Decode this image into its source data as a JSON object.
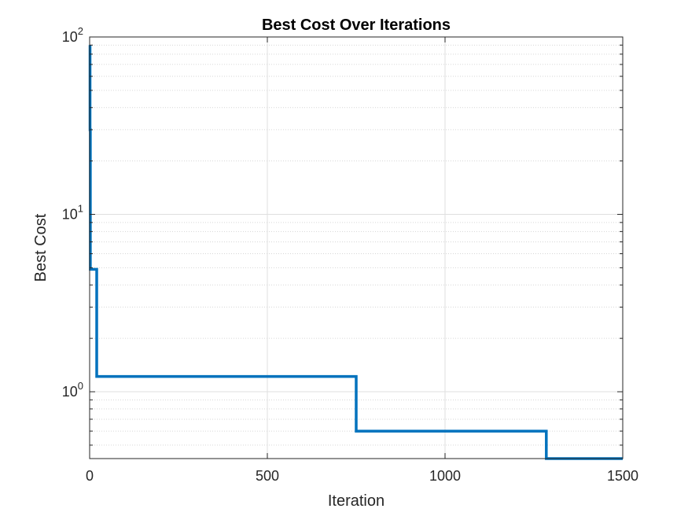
{
  "chart_data": {
    "type": "line",
    "title": "Best Cost Over Iterations",
    "xlabel": "Iteration",
    "ylabel": "Best Cost",
    "xlim": [
      0,
      1500
    ],
    "ylim": [
      0.42,
      100
    ],
    "yscale": "log",
    "grid": true,
    "minor_grid": true,
    "x_ticks": [
      0,
      500,
      1000,
      1500
    ],
    "x_tick_labels": [
      "0",
      "500",
      "1000",
      "1500"
    ],
    "y_ticks": [
      {
        "value": 1,
        "base": "10",
        "exp": "0"
      },
      {
        "value": 10,
        "base": "10",
        "exp": "1"
      },
      {
        "value": 100,
        "base": "10",
        "exp": "2"
      }
    ],
    "series": [
      {
        "color": "#0072BD",
        "step": true,
        "x": [
          1,
          1,
          2,
          2,
          20,
          20,
          750,
          750,
          1285,
          1285,
          1500
        ],
        "y": [
          90,
          30,
          30,
          4.9,
          4.9,
          1.22,
          1.22,
          0.6,
          0.6,
          0.42,
          0.42
        ]
      }
    ]
  }
}
